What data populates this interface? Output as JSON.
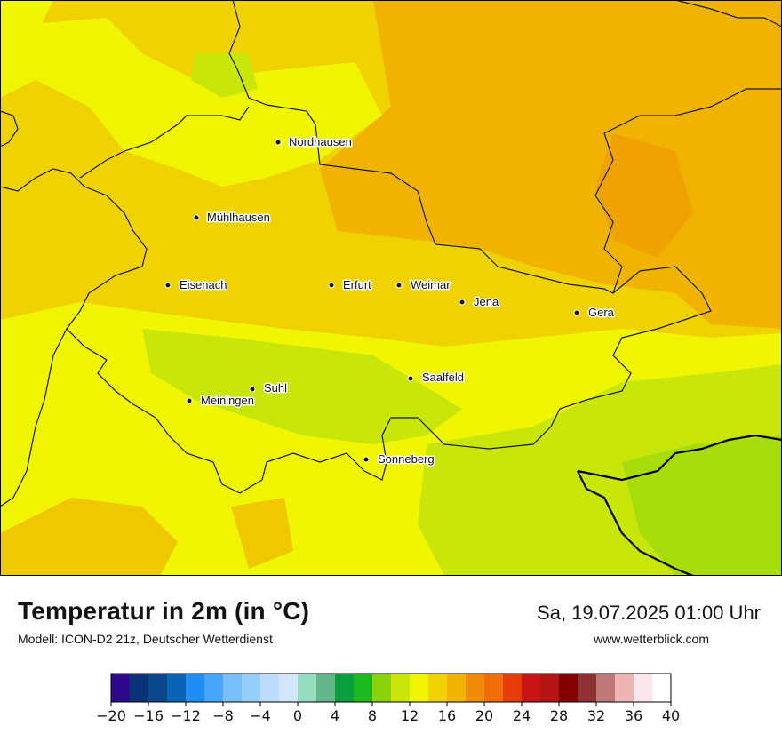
{
  "header": {
    "title": "Temperatur in 2m (in °C)",
    "model": "Modell: ICON-D2 21z, Deutscher Wetterdienst",
    "datetime": "Sa, 19.07.2025 01:00 Uhr",
    "website": "www.wetterblick.com"
  },
  "cities": [
    {
      "name": "Nordhausen"
    },
    {
      "name": "Mühlhausen"
    },
    {
      "name": "Eisenach"
    },
    {
      "name": "Erfurt"
    },
    {
      "name": "Weimar"
    },
    {
      "name": "Jena"
    },
    {
      "name": "Gera"
    },
    {
      "name": "Saalfeld"
    },
    {
      "name": "Suhl"
    },
    {
      "name": "Meiningen"
    },
    {
      "name": "Sonneberg"
    }
  ],
  "legend": {
    "min": -20,
    "max": 40,
    "step": 2,
    "tick_labels": [
      "−20",
      "−16",
      "−12",
      "−8",
      "−4",
      "0",
      "4",
      "8",
      "12",
      "16",
      "20",
      "24",
      "28",
      "32",
      "36",
      "40"
    ],
    "colors": [
      "#2d0a8c",
      "#0a3278",
      "#0a4688",
      "#0a64b4",
      "#1e8cf0",
      "#46a5fa",
      "#78bef9",
      "#96cdfb",
      "#bedcfc",
      "#d2e6fc",
      "#96dcbe",
      "#64b48c",
      "#0a9e3c",
      "#1eb91e",
      "#8cd20a",
      "#c8e60a",
      "#f0f500",
      "#f0d200",
      "#f0b400",
      "#f08c0a",
      "#f06e0a",
      "#e63c0a",
      "#c81414",
      "#b41414",
      "#820000",
      "#8c3232",
      "#be7878",
      "#f0b4b4",
      "#fce6ec"
    ]
  },
  "map_colors": {
    "yellow_16_18": "#f0f500",
    "lightyellow_18_20": "#f0d200",
    "orange_20_22": "#f0b400",
    "lime_14_16": "#c8e60a",
    "green_12_14": "#8cd20a"
  }
}
